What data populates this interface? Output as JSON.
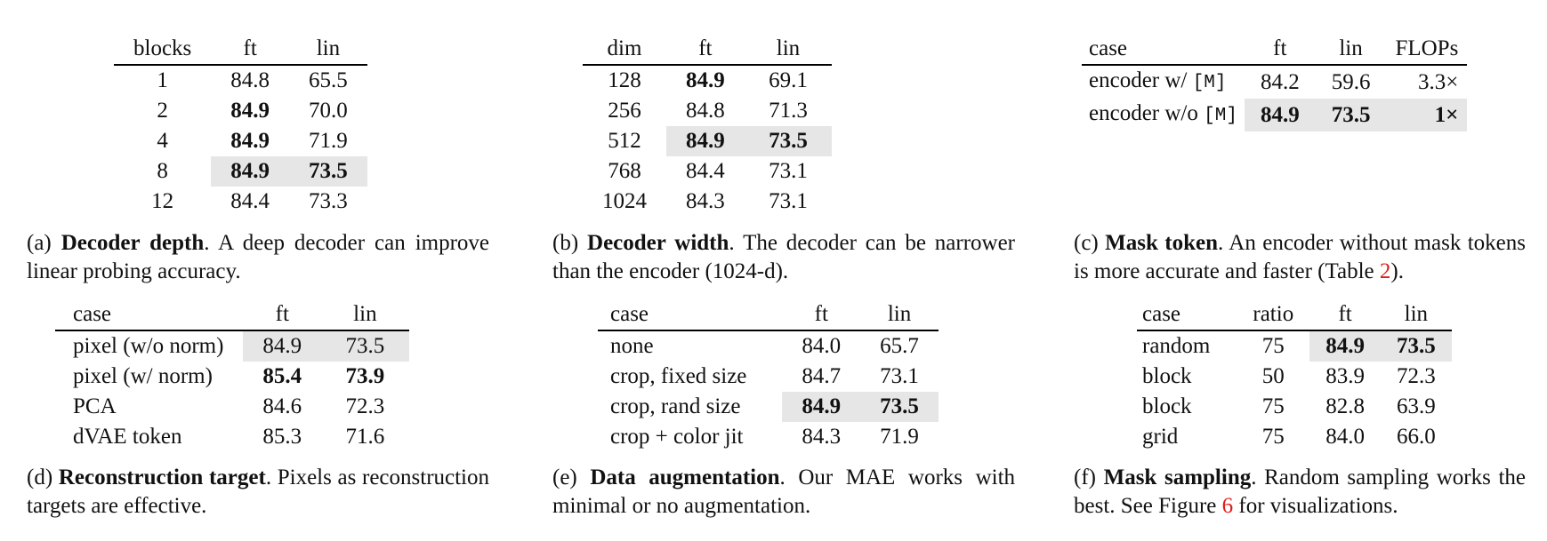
{
  "tables": {
    "a": {
      "headers": [
        "blocks",
        "ft",
        "lin"
      ],
      "rows": [
        {
          "c0": "1",
          "c1": "84.8",
          "c2": "65.5"
        },
        {
          "c0": "2",
          "c1": "84.9",
          "c2": "70.0"
        },
        {
          "c0": "4",
          "c1": "84.9",
          "c2": "71.9"
        },
        {
          "c0": "8",
          "c1": "84.9",
          "c2": "73.5"
        },
        {
          "c0": "12",
          "c1": "84.4",
          "c2": "73.3"
        }
      ],
      "caption": {
        "label": "(a)",
        "title": "Decoder depth",
        "text": ". A deep decoder can improve linear probing accuracy."
      }
    },
    "b": {
      "headers": [
        "dim",
        "ft",
        "lin"
      ],
      "rows": [
        {
          "c0": "128",
          "c1": "84.9",
          "c2": "69.1"
        },
        {
          "c0": "256",
          "c1": "84.8",
          "c2": "71.3"
        },
        {
          "c0": "512",
          "c1": "84.9",
          "c2": "73.5"
        },
        {
          "c0": "768",
          "c1": "84.4",
          "c2": "73.1"
        },
        {
          "c0": "1024",
          "c1": "84.3",
          "c2": "73.1"
        }
      ],
      "caption": {
        "label": "(b)",
        "title": "Decoder width",
        "text": ". The decoder can be narrower than the encoder (1024-d)."
      }
    },
    "c": {
      "headers": [
        "case",
        "ft",
        "lin",
        "FLOPs"
      ],
      "rows": [
        {
          "c0": "encoder w/ ",
          "c0_mono": "[M]",
          "c1": "84.2",
          "c2": "59.6",
          "c3": "3.3×"
        },
        {
          "c0": "encoder w/o ",
          "c0_mono": "[M]",
          "c1": "84.9",
          "c2": "73.5",
          "c3": "1×"
        }
      ],
      "caption": {
        "label": "(c)",
        "title": "Mask token",
        "text_before": ". An encoder without mask tokens is more accurate and faster (Table ",
        "ref": "2",
        "text_after": ")."
      }
    },
    "d": {
      "headers": [
        "case",
        "ft",
        "lin"
      ],
      "rows": [
        {
          "c0": "pixel (w/o norm)",
          "c1": "84.9",
          "c2": "73.5"
        },
        {
          "c0": "pixel (w/ norm)",
          "c1": "85.4",
          "c2": "73.9"
        },
        {
          "c0": "PCA",
          "c1": "84.6",
          "c2": "72.3"
        },
        {
          "c0": "dVAE token",
          "c1": "85.3",
          "c2": "71.6"
        }
      ],
      "caption": {
        "label": "(d)",
        "title": "Reconstruction target",
        "text": ". Pixels as reconstruction targets are effective."
      }
    },
    "e": {
      "headers": [
        "case",
        "ft",
        "lin"
      ],
      "rows": [
        {
          "c0": "none",
          "c1": "84.0",
          "c2": "65.7"
        },
        {
          "c0": "crop, fixed size",
          "c1": "84.7",
          "c2": "73.1"
        },
        {
          "c0": "crop, rand size",
          "c1": "84.9",
          "c2": "73.5"
        },
        {
          "c0": "crop + color jit",
          "c1": "84.3",
          "c2": "71.9"
        }
      ],
      "caption": {
        "label": "(e)",
        "title": "Data augmentation",
        "text": ". Our MAE works with minimal or no augmentation."
      }
    },
    "f": {
      "headers": [
        "case",
        "ratio",
        "ft",
        "lin"
      ],
      "rows": [
        {
          "c0": "random",
          "c1": "75",
          "c2": "84.9",
          "c3": "73.5"
        },
        {
          "c0": "block",
          "c1": "50",
          "c2": "83.9",
          "c3": "72.3"
        },
        {
          "c0": "block",
          "c1": "75",
          "c2": "82.8",
          "c3": "63.9"
        },
        {
          "c0": "grid",
          "c1": "75",
          "c2": "84.0",
          "c3": "66.0"
        }
      ],
      "caption": {
        "label": "(f)",
        "title": "Mask sampling",
        "text_before": ". Random sampling works the best. See Figure ",
        "ref": "6",
        "text_after": " for visualizations."
      }
    }
  },
  "colors": {
    "highlight": "#e6e6e6",
    "reference_link": "#e31b1b"
  }
}
